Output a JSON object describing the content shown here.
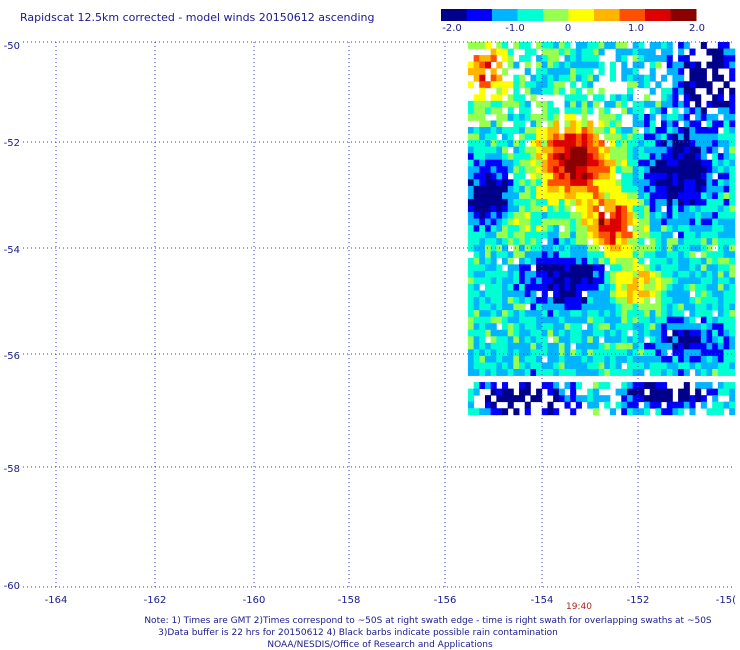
{
  "chart_data": {
    "type": "heatmap",
    "title": "Rapidscat 12.5km corrected - model winds 20150612 ascending",
    "x_ticks": [
      "-164",
      "-162",
      "-160",
      "-158",
      "-156",
      "-154",
      "-152",
      "-15("
    ],
    "y_ticks": [
      "-50",
      "-52",
      "-54",
      "-56",
      "-58",
      "-60"
    ],
    "xlim": [
      -165,
      -150
    ],
    "ylim": [
      -60,
      -50
    ],
    "grid": true,
    "colorbar": {
      "ticks": [
        "-2.0",
        "-1.0",
        "0",
        "1.0",
        "2.0"
      ],
      "range": [
        -2.0,
        2.0
      ],
      "colors": [
        "#00008b",
        "#0000ff",
        "#00b4ff",
        "#00ffd2",
        "#96ff50",
        "#ffff00",
        "#ffb400",
        "#ff5000",
        "#dc0000",
        "#8b0000"
      ]
    },
    "time_label": "19:40",
    "time_label_color": "#aa2222",
    "swath": {
      "lon_range": [
        -155.6,
        -150.0
      ],
      "lat_range": [
        -56.8,
        -50.0
      ],
      "cell_deg": 0.12,
      "fields": [
        {
          "lon": -153.4,
          "lat": -52.1,
          "amp": 2.6,
          "sx": 0.55,
          "sy": 0.5
        },
        {
          "lon": -152.6,
          "lat": -53.3,
          "amp": 2.2,
          "sx": 0.4,
          "sy": 0.35
        },
        {
          "lon": -155.3,
          "lat": -50.5,
          "amp": 1.8,
          "sx": 0.35,
          "sy": 0.45
        },
        {
          "lon": -152.1,
          "lat": -54.4,
          "amp": 1.3,
          "sx": 0.35,
          "sy": 0.3
        },
        {
          "lon": -154.6,
          "lat": -53.3,
          "amp": 0.9,
          "sx": 0.3,
          "sy": 0.3
        },
        {
          "lon": -151.2,
          "lat": -52.3,
          "amp": -1.2,
          "sx": 0.5,
          "sy": 0.55
        },
        {
          "lon": -155.2,
          "lat": -52.8,
          "amp": -1.4,
          "sx": 0.4,
          "sy": 0.4
        },
        {
          "lon": -153.6,
          "lat": -54.3,
          "amp": -1.3,
          "sx": 0.55,
          "sy": 0.35
        },
        {
          "lon": -150.6,
          "lat": -50.6,
          "amp": -1.7,
          "sx": 0.4,
          "sy": 0.45
        },
        {
          "lon": -151.0,
          "lat": -55.4,
          "amp": -1.0,
          "sx": 0.45,
          "sy": 0.25
        },
        {
          "lon": -154.5,
          "lat": -56.5,
          "amp": -1.8,
          "sx": 0.6,
          "sy": 0.25
        },
        {
          "lon": -151.5,
          "lat": -56.4,
          "amp": -1.6,
          "sx": 0.6,
          "sy": 0.2
        }
      ],
      "base_value": -0.7,
      "gap_lat": [
        -56.05,
        -56.2
      ]
    }
  },
  "notes": {
    "line1": "Note: 1) Times are GMT 2)Times correspond to ~50S at right swath edge - time is right swath for overlapping swaths at ~50S",
    "line2": "3)Data buffer is 22 hrs for 20150612 4) Black barbs indicate possible rain contamination",
    "line3": "NOAA/NESDIS/Office of Research and Applications"
  }
}
